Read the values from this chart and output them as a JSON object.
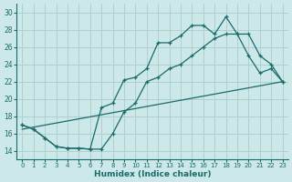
{
  "xlabel": "Humidex (Indice chaleur)",
  "xlim": [
    -0.5,
    23.5
  ],
  "ylim": [
    13,
    31
  ],
  "xticks": [
    0,
    1,
    2,
    3,
    4,
    5,
    6,
    7,
    8,
    9,
    10,
    11,
    12,
    13,
    14,
    15,
    16,
    17,
    18,
    19,
    20,
    21,
    22,
    23
  ],
  "yticks": [
    14,
    16,
    18,
    20,
    22,
    24,
    26,
    28,
    30
  ],
  "bg_color": "#cce8e8",
  "grid_color": "#b0d0d0",
  "line_color": "#1a6b6b",
  "series1_x": [
    0,
    1,
    2,
    3,
    4,
    5,
    6,
    7,
    8,
    9,
    10,
    11,
    12,
    13,
    14,
    15,
    16,
    17,
    18,
    19,
    20,
    21,
    22,
    23
  ],
  "series1_y": [
    17,
    16.5,
    15.5,
    14.5,
    14.3,
    14.3,
    14.2,
    19.0,
    19.5,
    22.2,
    22.5,
    23.5,
    26.5,
    26.5,
    27.3,
    28.5,
    28.5,
    27.5,
    29.5,
    27.5,
    27.5,
    25.0,
    24.0,
    22.0
  ],
  "series2_x": [
    0,
    1,
    2,
    3,
    4,
    5,
    6,
    7,
    8,
    9,
    10,
    11,
    12,
    13,
    14,
    15,
    16,
    17,
    18,
    19,
    20,
    21,
    22,
    23
  ],
  "series2_y": [
    17,
    16.5,
    15.5,
    14.5,
    14.3,
    14.3,
    14.2,
    14.2,
    16.0,
    18.5,
    19.5,
    22.0,
    22.5,
    23.5,
    24.0,
    25.0,
    26.0,
    27.0,
    27.5,
    27.5,
    25.0,
    23.0,
    23.5,
    22.0
  ],
  "series3_x": [
    0,
    23
  ],
  "series3_y": [
    16.5,
    22.0
  ]
}
